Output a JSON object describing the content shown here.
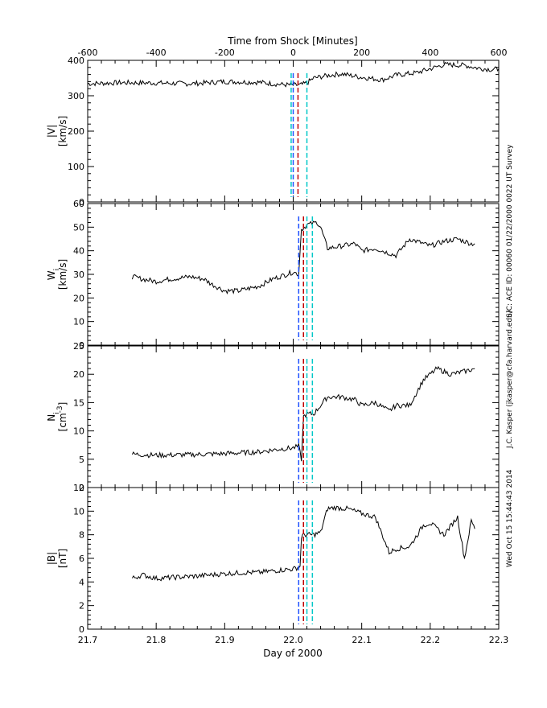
{
  "top_axis": {
    "title": "Time from Shock [Minutes]",
    "ticks": [
      "-600",
      "-400",
      "-200",
      "0",
      "200",
      "400",
      "600"
    ],
    "range": [
      -600,
      600
    ]
  },
  "bottom_axis": {
    "title": "Day of 2000",
    "ticks": [
      "21.7",
      "21.8",
      "21.9",
      "22.0",
      "22.1",
      "22.2",
      "22.3"
    ],
    "range": [
      21.7,
      22.3
    ]
  },
  "credits": {
    "line1": "S/C: ACE  ID: 00060  01/22/2000  0022 UT  Survey",
    "line2": "J.C. Kasper (jkasper@cfa.harvard.edu)",
    "line3": "Wed Oct 15 15:44:43 2014"
  },
  "chart_data": [
    {
      "type": "line",
      "ylabel": "|V| [km/s]",
      "ylabel_line1": "|V|",
      "ylabel_line2": "[km/s]",
      "ylim": [
        0,
        400
      ],
      "yticks": [
        "0",
        "100",
        "200",
        "300",
        "400"
      ],
      "x_start": 21.7,
      "x_end": 22.3,
      "x": [
        21.7,
        21.75,
        21.8,
        21.85,
        21.9,
        21.95,
        21.98,
        22.0,
        22.01,
        22.02,
        22.03,
        22.05,
        22.07,
        22.1,
        22.13,
        22.15,
        22.18,
        22.2,
        22.22,
        22.25,
        22.27,
        22.29,
        22.3
      ],
      "y": [
        334,
        337,
        336,
        334,
        340,
        338,
        332,
        330,
        330,
        336,
        350,
        357,
        362,
        352,
        345,
        358,
        365,
        376,
        388,
        386,
        378,
        374,
        376
      ],
      "shock_lines": [
        {
          "x": 21.997,
          "color": "#00c8c8"
        },
        {
          "x": 22.0,
          "color": "#1e50ff"
        },
        {
          "x": 22.007,
          "color": "#c00000"
        },
        {
          "x": 22.02,
          "color": "#00c8c8"
        }
      ]
    },
    {
      "type": "line",
      "ylabel": "W_i [km/s]",
      "ylabel_line1": "W",
      "ylabel_sub": "i",
      "ylabel_line2": "[km/s]",
      "ylim": [
        0,
        60
      ],
      "yticks": [
        "0",
        "10",
        "20",
        "30",
        "40",
        "50",
        "60"
      ],
      "x_start": 21.765,
      "x_end": 22.265,
      "x": [
        21.765,
        21.78,
        21.8,
        21.82,
        21.85,
        21.87,
        21.88,
        21.9,
        21.92,
        21.95,
        21.97,
        21.99,
        22.0,
        22.008,
        22.012,
        22.02,
        22.035,
        22.04,
        22.05,
        22.07,
        22.09,
        22.1,
        22.12,
        22.15,
        22.17,
        22.19,
        22.2,
        22.22,
        22.24,
        22.26,
        22.265
      ],
      "y": [
        29,
        28,
        27,
        28,
        29,
        28,
        26,
        23,
        23,
        25,
        28,
        30,
        31,
        30,
        49,
        51,
        52,
        50,
        41,
        42,
        43,
        40,
        41,
        38,
        45,
        43,
        42,
        44,
        45,
        43,
        43
      ],
      "shock_lines": [
        {
          "x": 22.008,
          "color": "#1e50ff"
        },
        {
          "x": 22.015,
          "color": "#c00000"
        },
        {
          "x": 22.02,
          "color": "#00c8c8"
        },
        {
          "x": 22.028,
          "color": "#00c8c8"
        }
      ]
    },
    {
      "type": "line",
      "ylabel": "N_i [cm^-3]",
      "ylabel_line1": "N",
      "ylabel_sub": "i",
      "ylabel_line2": "[cm",
      "ylabel_sup": "-3",
      "ylabel_close": "]",
      "ylim": [
        0,
        25
      ],
      "yticks": [
        "0",
        "5",
        "10",
        "15",
        "20",
        "25"
      ],
      "x_start": 21.765,
      "x_end": 22.265,
      "x": [
        21.765,
        21.8,
        21.85,
        21.9,
        21.95,
        21.98,
        22.0,
        22.008,
        22.012,
        22.015,
        22.02,
        22.03,
        22.05,
        22.07,
        22.09,
        22.1,
        22.12,
        22.14,
        22.15,
        22.17,
        22.19,
        22.21,
        22.23,
        22.25,
        22.265
      ],
      "y": [
        5.9,
        5.7,
        5.8,
        6.0,
        6.3,
        6.8,
        7.0,
        7.3,
        5.0,
        12.5,
        13.0,
        13.0,
        16.0,
        16.0,
        15.5,
        14.5,
        15.0,
        13.5,
        14.5,
        14.5,
        19.0,
        21.0,
        20.0,
        20.5,
        21.0
      ],
      "shock_lines": [
        {
          "x": 22.008,
          "color": "#1e50ff"
        },
        {
          "x": 22.015,
          "color": "#c00000"
        },
        {
          "x": 22.02,
          "color": "#00c8c8"
        },
        {
          "x": 22.028,
          "color": "#00c8c8"
        }
      ]
    },
    {
      "type": "line",
      "ylabel": "|B| [nT]",
      "ylabel_line1": "|B|",
      "ylabel_line2": "[nT]",
      "ylim": [
        0,
        12
      ],
      "yticks": [
        "0",
        "2",
        "4",
        "6",
        "8",
        "10",
        "12"
      ],
      "x_start": 21.765,
      "x_end": 22.265,
      "x": [
        21.765,
        21.78,
        21.8,
        21.83,
        21.86,
        21.88,
        21.9,
        21.93,
        21.95,
        21.98,
        22.0,
        22.01,
        22.012,
        22.015,
        22.02,
        22.03,
        22.04,
        22.05,
        22.06,
        22.08,
        22.1,
        22.12,
        22.14,
        22.15,
        22.17,
        22.19,
        22.2,
        22.22,
        22.24,
        22.25,
        22.26,
        22.265
      ],
      "y": [
        4.3,
        4.6,
        4.3,
        4.4,
        4.5,
        4.6,
        4.7,
        4.8,
        4.8,
        5.0,
        5.1,
        5.3,
        7.8,
        8.0,
        8.0,
        8.0,
        8.2,
        10.2,
        10.3,
        10.2,
        9.8,
        9.5,
        6.5,
        6.8,
        7.0,
        8.8,
        9.0,
        8.0,
        9.5,
        6.0,
        9.2,
        8.5
      ],
      "shock_lines": [
        {
          "x": 22.008,
          "color": "#1e50ff"
        },
        {
          "x": 22.015,
          "color": "#c00000"
        },
        {
          "x": 22.02,
          "color": "#00c8c8"
        },
        {
          "x": 22.028,
          "color": "#00c8c8"
        }
      ]
    }
  ]
}
